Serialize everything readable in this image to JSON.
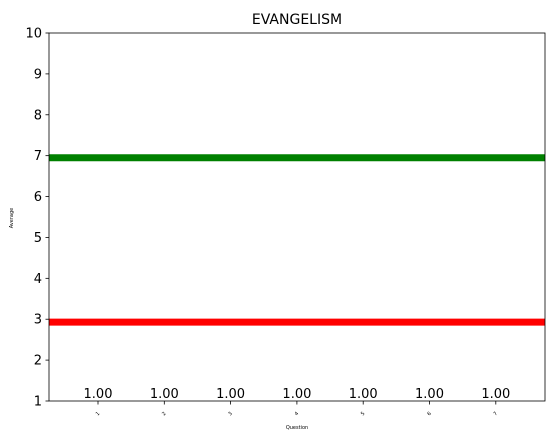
{
  "chart_data": {
    "type": "bar",
    "title": "EVANGELISM",
    "xlabel": "Question",
    "ylabel": "Average",
    "categories": [
      "1",
      "2",
      "3",
      "4",
      "5",
      "6",
      "7"
    ],
    "values": [
      1.0,
      1.0,
      1.0,
      1.0,
      1.0,
      1.0,
      1.0
    ],
    "value_labels": [
      "1.00",
      "1.00",
      "1.00",
      "1.00",
      "1.00",
      "1.00",
      "1.00"
    ],
    "ylim": [
      1,
      10
    ],
    "yticks": [
      "1",
      "2",
      "3",
      "4",
      "5",
      "6",
      "7",
      "8",
      "9",
      "10"
    ],
    "grid": false,
    "reference_lines": [
      {
        "y": 6.95,
        "color": "#008000"
      },
      {
        "y": 2.93,
        "color": "#ff0000"
      }
    ]
  }
}
